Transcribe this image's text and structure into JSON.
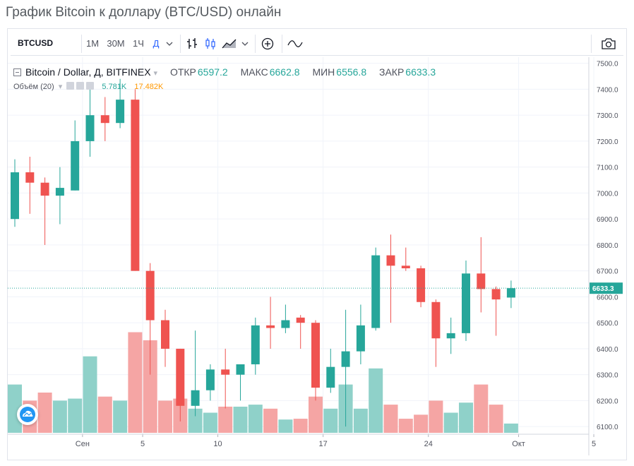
{
  "page": {
    "title": "График Bitcoin к доллару (BTC/USD) онлайн"
  },
  "toolbar": {
    "symbol": "BTCUSD",
    "intervals": [
      "1М",
      "30М",
      "1Ч",
      "Д"
    ],
    "active_interval": "Д",
    "icons": [
      "bars-icon",
      "candles-icon",
      "area-chart-icon",
      "chevron-down-icon",
      "add-compare-icon",
      "indicators-icon",
      "camera-icon"
    ]
  },
  "legend": {
    "title": "Bitcoin / Dollar, Д, BITFINEX",
    "open_label": "ОТКР",
    "open": "6597.2",
    "high_label": "МАКС",
    "high": "6662.8",
    "low_label": "МИН",
    "low": "6556.8",
    "close_label": "ЗАКР",
    "close": "6633.3"
  },
  "volume_legend": {
    "label": "Объём (20)",
    "value1": "5.781K",
    "value2": "17.482K"
  },
  "colors": {
    "up": "#26a69a",
    "down": "#ef5350",
    "up_vol": "#8fd1c9",
    "down_vol": "#f5a5a4",
    "grid": "#f0f3fa",
    "axis": "#50535e"
  },
  "chart_data": {
    "type": "candlestick",
    "title": "Bitcoin / Dollar, Д, BITFINEX",
    "ylim": [
      6030,
      7520
    ],
    "y_ticks": [
      "7500.0",
      "7400.0",
      "7300.0",
      "7200.0",
      "7100.0",
      "7000.0",
      "6900.0",
      "6800.0",
      "6700.0",
      "6600.0",
      "6500.0",
      "6400.0",
      "6300.0",
      "6200.0",
      "6100.0"
    ],
    "x_ticks": [
      "Сен",
      "5",
      "10",
      "17",
      "24",
      "Окт",
      "5"
    ],
    "last_price": "6633.3",
    "candles": [
      {
        "o": 6900,
        "h": 7130,
        "l": 6870,
        "c": 7080,
        "v": 12
      },
      {
        "o": 7080,
        "h": 7140,
        "l": 6920,
        "c": 7040,
        "v": 8
      },
      {
        "o": 7040,
        "h": 7060,
        "l": 6800,
        "c": 6990,
        "v": 10
      },
      {
        "o": 6990,
        "h": 7100,
        "l": 6880,
        "c": 7020,
        "v": 8
      },
      {
        "o": 7010,
        "h": 7280,
        "l": 7010,
        "c": 7200,
        "v": 8.5
      },
      {
        "o": 7200,
        "h": 7420,
        "l": 7140,
        "c": 7300,
        "v": 19
      },
      {
        "o": 7300,
        "h": 7370,
        "l": 7200,
        "c": 7270,
        "v": 9
      },
      {
        "o": 7270,
        "h": 7440,
        "l": 7250,
        "c": 7360,
        "v": 8
      },
      {
        "o": 7360,
        "h": 7400,
        "l": 6700,
        "c": 6700,
        "v": 25
      },
      {
        "o": 6700,
        "h": 6730,
        "l": 6300,
        "c": 6510,
        "v": 23
      },
      {
        "o": 6510,
        "h": 6550,
        "l": 6330,
        "c": 6400,
        "v": 8
      },
      {
        "o": 6400,
        "h": 6400,
        "l": 6120,
        "c": 6180,
        "v": 8.5
      },
      {
        "o": 6180,
        "h": 6470,
        "l": 6140,
        "c": 6240,
        "v": 6
      },
      {
        "o": 6240,
        "h": 6340,
        "l": 6200,
        "c": 6320,
        "v": 5
      },
      {
        "o": 6320,
        "h": 6400,
        "l": 6170,
        "c": 6300,
        "v": 6.5
      },
      {
        "o": 6300,
        "h": 6340,
        "l": 6200,
        "c": 6340,
        "v": 6.5
      },
      {
        "o": 6340,
        "h": 6520,
        "l": 6300,
        "c": 6490,
        "v": 7
      },
      {
        "o": 6490,
        "h": 6600,
        "l": 6400,
        "c": 6480,
        "v": 6
      },
      {
        "o": 6480,
        "h": 6570,
        "l": 6460,
        "c": 6510,
        "v": 3.3
      },
      {
        "o": 6520,
        "h": 6530,
        "l": 6400,
        "c": 6500,
        "v": 3.5
      },
      {
        "o": 6500,
        "h": 6510,
        "l": 6200,
        "c": 6250,
        "v": 9
      },
      {
        "o": 6250,
        "h": 6400,
        "l": 6230,
        "c": 6330,
        "v": 6
      },
      {
        "o": 6330,
        "h": 6550,
        "l": 6100,
        "c": 6390,
        "v": 12
      },
      {
        "o": 6390,
        "h": 6570,
        "l": 6340,
        "c": 6490,
        "v": 6
      },
      {
        "o": 6480,
        "h": 6790,
        "l": 6470,
        "c": 6760,
        "v": 16
      },
      {
        "o": 6760,
        "h": 6840,
        "l": 6500,
        "c": 6720,
        "v": 7
      },
      {
        "o": 6720,
        "h": 6790,
        "l": 6700,
        "c": 6710,
        "v": 3.5
      },
      {
        "o": 6710,
        "h": 6720,
        "l": 6560,
        "c": 6580,
        "v": 4.5
      },
      {
        "o": 6580,
        "h": 6590,
        "l": 6330,
        "c": 6440,
        "v": 8
      },
      {
        "o": 6440,
        "h": 6520,
        "l": 6380,
        "c": 6460,
        "v": 5
      },
      {
        "o": 6460,
        "h": 6740,
        "l": 6430,
        "c": 6690,
        "v": 7.5
      },
      {
        "o": 6690,
        "h": 6830,
        "l": 6540,
        "c": 6630,
        "v": 12
      },
      {
        "o": 6630,
        "h": 6640,
        "l": 6450,
        "c": 6590,
        "v": 7
      },
      {
        "o": 6597.2,
        "h": 6662.8,
        "l": 6556.8,
        "c": 6633.3,
        "v": 2.3
      }
    ]
  }
}
